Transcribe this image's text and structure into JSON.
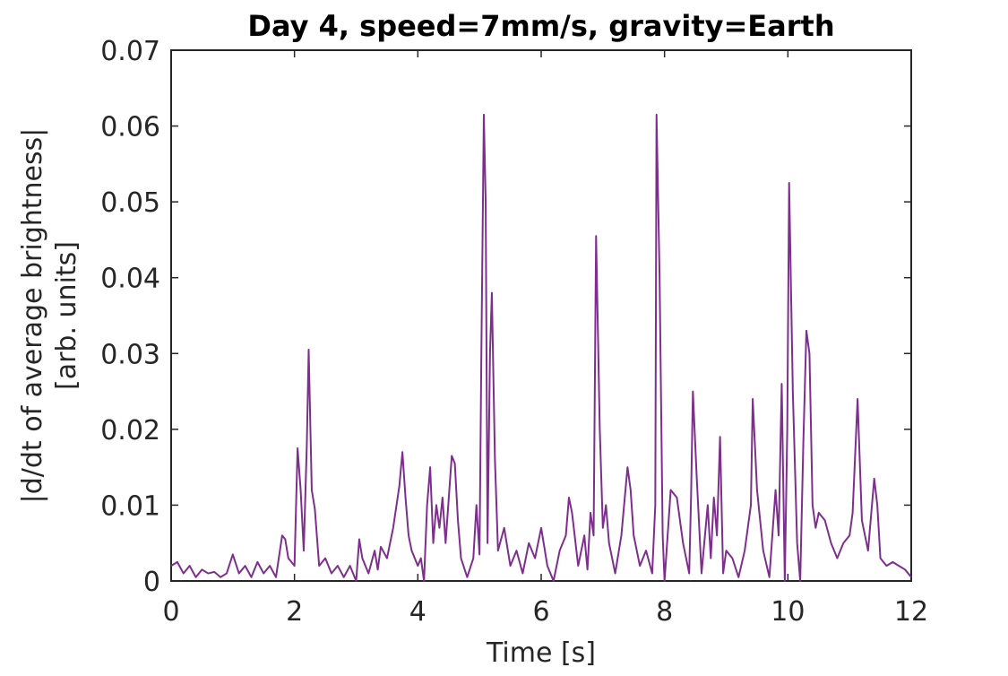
{
  "chart_data": {
    "type": "line",
    "title": "Day 4, speed=7mm/s, gravity=Earth",
    "xlabel": "Time [s]",
    "ylabel": [
      "|d/dt of average brightness|",
      "[arb. units]"
    ],
    "xlim": [
      0,
      12
    ],
    "xticks": [
      0,
      2,
      4,
      6,
      8,
      10,
      12
    ],
    "ylim": [
      0,
      0.07
    ],
    "yticks": [
      0,
      0.01,
      0.02,
      0.03,
      0.04,
      0.05,
      0.06,
      0.07
    ],
    "grid": false,
    "series": [
      {
        "color": "#7e2f8e",
        "x": [
          0,
          0.1,
          0.2,
          0.3,
          0.4,
          0.5,
          0.6,
          0.7,
          0.8,
          0.9,
          1.0,
          1.1,
          1.2,
          1.3,
          1.4,
          1.5,
          1.6,
          1.7,
          1.8,
          1.85,
          1.9,
          2.0,
          2.05,
          2.1,
          2.15,
          2.2,
          2.23,
          2.28,
          2.33,
          2.4,
          2.5,
          2.6,
          2.7,
          2.8,
          2.9,
          3.0,
          3.05,
          3.1,
          3.2,
          3.3,
          3.35,
          3.4,
          3.5,
          3.6,
          3.7,
          3.75,
          3.8,
          3.85,
          3.9,
          4.0,
          4.05,
          4.1,
          4.15,
          4.2,
          4.25,
          4.3,
          4.35,
          4.4,
          4.45,
          4.55,
          4.6,
          4.65,
          4.7,
          4.8,
          4.9,
          4.95,
          5.0,
          5.03,
          5.07,
          5.1,
          5.13,
          5.17,
          5.2,
          5.25,
          5.3,
          5.4,
          5.5,
          5.6,
          5.7,
          5.8,
          5.9,
          6.0,
          6.1,
          6.2,
          6.3,
          6.4,
          6.45,
          6.5,
          6.6,
          6.7,
          6.75,
          6.8,
          6.85,
          6.89,
          6.95,
          7.0,
          7.05,
          7.1,
          7.2,
          7.3,
          7.4,
          7.45,
          7.5,
          7.6,
          7.7,
          7.8,
          7.85,
          7.87,
          7.92,
          7.97,
          8.0,
          8.1,
          8.2,
          8.3,
          8.4,
          8.43,
          8.46,
          8.52,
          8.6,
          8.7,
          8.75,
          8.8,
          8.85,
          8.9,
          8.95,
          9.0,
          9.1,
          9.2,
          9.3,
          9.4,
          9.43,
          9.5,
          9.6,
          9.7,
          9.8,
          9.85,
          9.9,
          9.95,
          9.99,
          10.02,
          10.08,
          10.15,
          10.2,
          10.25,
          10.3,
          10.35,
          10.4,
          10.45,
          10.5,
          10.6,
          10.7,
          10.8,
          10.9,
          11.0,
          11.05,
          11.13,
          11.2,
          11.3,
          11.4,
          11.45,
          11.5,
          11.6,
          11.7,
          11.8,
          11.9,
          12.0
        ],
        "values": [
          0.002,
          0.0025,
          0.001,
          0.002,
          0.0005,
          0.0015,
          0.001,
          0.0012,
          0.0005,
          0.001,
          0.0035,
          0.001,
          0.002,
          0.0005,
          0.0025,
          0.001,
          0.002,
          0.0005,
          0.006,
          0.0055,
          0.003,
          0.002,
          0.0175,
          0.012,
          0.004,
          0.018,
          0.0305,
          0.012,
          0.0095,
          0.002,
          0.003,
          0.001,
          0.002,
          0.0005,
          0.002,
          0,
          0.0055,
          0.003,
          0.001,
          0.004,
          0.0015,
          0.0045,
          0.003,
          0.007,
          0.0125,
          0.017,
          0.011,
          0.006,
          0.004,
          0.002,
          0.003,
          0,
          0.01,
          0.015,
          0.005,
          0.01,
          0.007,
          0.011,
          0.005,
          0.0165,
          0.0155,
          0.008,
          0.003,
          0.0005,
          0.003,
          0.01,
          0.0035,
          0.03,
          0.0615,
          0.05,
          0.005,
          0.03,
          0.038,
          0.016,
          0.004,
          0.007,
          0.002,
          0.004,
          0.001,
          0.005,
          0.003,
          0.007,
          0.002,
          0,
          0.004,
          0.006,
          0.011,
          0.009,
          0.002,
          0.006,
          0.0015,
          0.009,
          0.006,
          0.0455,
          0.02,
          0.007,
          0.01,
          0.005,
          0.001,
          0.006,
          0.015,
          0.012,
          0.006,
          0.002,
          0.004,
          0.001,
          0.01,
          0.0615,
          0.04,
          0.006,
          0,
          0.012,
          0.011,
          0.005,
          0.001,
          0.011,
          0.025,
          0.014,
          0.001,
          0.01,
          0.003,
          0.011,
          0.006,
          0.019,
          0.001,
          0.004,
          0.003,
          0.0005,
          0.004,
          0.01,
          0.024,
          0.012,
          0.004,
          0.0005,
          0.012,
          0.006,
          0.026,
          0,
          0.02,
          0.0525,
          0.025,
          0.005,
          0,
          0.018,
          0.033,
          0.03,
          0.01,
          0.007,
          0.009,
          0.008,
          0.005,
          0.003,
          0.005,
          0.006,
          0.009,
          0.024,
          0.008,
          0.004,
          0.0135,
          0.01,
          0.003,
          0.002,
          0.0025,
          0.002,
          0.0015,
          0.0005
        ]
      }
    ]
  }
}
